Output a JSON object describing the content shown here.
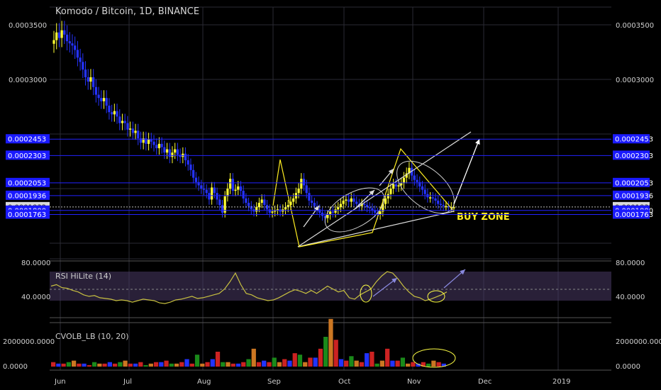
{
  "title": "Komodo / Bitcoin, 1D, BINANCE",
  "annotation": "BUY ZONE",
  "price_axis": {
    "ticks": [
      "0.0003500",
      "0.0003000"
    ],
    "levels": [
      {
        "label": "0.0002453",
        "value": 0.0002453,
        "color": "#1414ff"
      },
      {
        "label": "0.0002303",
        "value": 0.0002303,
        "color": "#1414ff"
      },
      {
        "label": "0.0002053",
        "value": 0.0002053,
        "color": "#1414ff"
      },
      {
        "label": "0.0001936",
        "value": 0.0001936,
        "color": "#1414ff"
      },
      {
        "label": "0.0001832",
        "value": 0.0001832,
        "color": "#cccccc"
      },
      {
        "label": "0.0001800",
        "value": 0.00018,
        "color": "#1414ff"
      },
      {
        "label": "0.0001763",
        "value": 0.0001763,
        "color": "#1414ff"
      }
    ]
  },
  "rsi": {
    "name": "RSI HiLite (14)",
    "ticks": [
      "80.0000",
      "40.0000"
    ]
  },
  "cvol": {
    "name": "CVOLB_LB (10, 20)",
    "ticks": [
      "2000000.0000",
      "0.0000"
    ]
  },
  "x_axis": {
    "ticks": [
      "Jun",
      "Jul",
      "Aug",
      "Sep",
      "Oct",
      "Nov",
      "Dec",
      "2019"
    ]
  },
  "colors": {
    "up": "#ffff33",
    "down": "#2533ff",
    "grid": "#333340",
    "rsi_band": "#4a3a66"
  },
  "chart_data": {
    "type": "candlestick",
    "title": "Komodo / Bitcoin, 1D, BINANCE",
    "x_range": [
      "2018-05-29",
      "2019-01-05"
    ],
    "y_range": [
      0.00017,
      0.00037
    ],
    "horizontal_levels": [
      0.0002453,
      0.0002303,
      0.0002053,
      0.0001936,
      0.00018,
      0.0001763
    ],
    "last_price": 0.0001832,
    "candles_close": [
      0.000336,
      0.000343,
      0.000338,
      0.000345,
      0.000341,
      0.000335,
      0.000333,
      0.000331,
      0.000327,
      0.00032,
      0.000316,
      0.000309,
      0.000302,
      0.000298,
      0.000302,
      0.000293,
      0.000286,
      0.000283,
      0.00028,
      0.000283,
      0.000276,
      0.00027,
      0.000268,
      0.000271,
      0.000266,
      0.00026,
      0.000262,
      0.00026,
      0.000254,
      0.000255,
      0.000251,
      0.000253,
      0.000246,
      0.000242,
      0.000246,
      0.000241,
      0.000245,
      0.000243,
      0.00024,
      0.000237,
      0.000241,
      0.000238,
      0.000233,
      0.000236,
      0.000229,
      0.000233,
      0.000236,
      0.000231,
      0.000229,
      0.000232,
      0.000226,
      0.000222,
      0.000217,
      0.00021,
      0.000206,
      0.000203,
      0.0002,
      0.000199,
      0.000196,
      0.00019,
      0.000201,
      0.000196,
      0.00019,
      0.000185,
      0.000178,
      0.000193,
      0.0002,
      0.000209,
      0.000198,
      0.000199,
      0.000202,
      0.000198,
      0.000191,
      0.000187,
      0.000184,
      0.000181,
      0.000179,
      0.000183,
      0.000187,
      0.00019,
      0.000185,
      0.000181,
      0.000178,
      0.000179,
      0.00018,
      0.000181,
      0.000179,
      0.000181,
      0.000183,
      0.000185,
      0.000188,
      0.000191,
      0.000196,
      0.0002,
      0.000209,
      0.000203,
      0.000196,
      0.000189,
      0.000187,
      0.000184,
      0.000181,
      0.000178,
      0.000175,
      0.000173,
      0.000176,
      0.000179,
      0.000178,
      0.000181,
      0.000183,
      0.000186,
      0.000189,
      0.00019,
      0.000188,
      0.000191,
      0.000188,
      0.000186,
      0.000184,
      0.000186,
      0.000185,
      0.000183,
      0.000182,
      0.00018,
      0.000178,
      0.000176,
      0.000179,
      0.000186,
      0.000191,
      0.000195,
      0.0002,
      0.000204,
      0.000202,
      0.000203,
      0.000205,
      0.00021,
      0.000214,
      0.000219,
      0.000212,
      0.000208,
      0.000206,
      0.000202,
      0.000199,
      0.000195,
      0.000192,
      0.000192,
      0.000191,
      0.000189,
      0.000186,
      0.000185,
      0.000184,
      0.000184,
      0.000183,
      0.000183,
      0.000183
    ],
    "rsi_values": [
      60,
      62,
      58,
      57,
      54,
      52,
      48,
      46,
      47,
      44,
      43,
      42,
      40,
      41,
      40,
      38,
      40,
      42,
      41,
      40,
      37,
      36,
      38,
      41,
      42,
      44,
      46,
      43,
      44,
      46,
      48,
      50,
      56,
      66,
      78,
      62,
      50,
      48,
      44,
      42,
      40,
      41,
      44,
      48,
      52,
      55,
      53,
      50,
      54,
      50,
      55,
      60,
      56,
      52,
      54,
      44,
      42,
      48,
      52,
      56,
      66,
      74,
      80,
      78,
      70,
      60,
      52,
      46,
      44,
      40,
      42,
      45,
      48,
      52
    ],
    "volume_values": [
      3,
      2,
      2,
      3,
      4,
      2,
      2,
      1,
      3,
      2,
      2,
      3,
      2,
      3,
      4,
      2,
      2,
      3,
      1,
      2,
      3,
      3,
      4,
      2,
      2,
      3,
      5,
      2,
      8,
      2,
      3,
      5,
      10,
      3,
      3,
      2,
      2,
      3,
      5,
      12,
      3,
      4,
      3,
      6,
      3,
      5,
      4,
      9,
      8,
      3,
      6,
      6,
      12,
      20,
      32,
      18,
      5,
      4,
      7,
      4,
      3,
      9,
      10,
      2,
      4,
      12,
      4,
      4,
      6,
      2,
      3,
      2,
      3,
      2,
      4,
      3,
      2
    ]
  }
}
